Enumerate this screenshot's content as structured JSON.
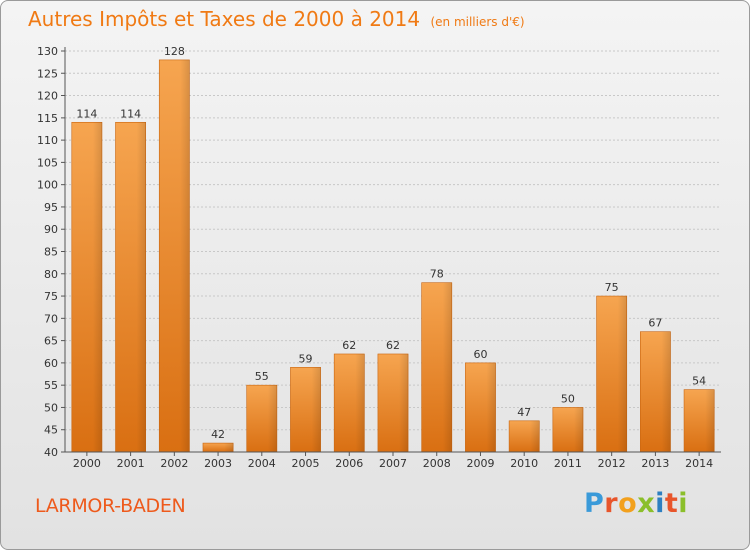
{
  "chart_data": {
    "type": "bar",
    "title": "Autres Impôts et Taxes de 2000 à 2014",
    "subtitle": "(en milliers d'€)",
    "categories": [
      "2000",
      "2001",
      "2002",
      "2003",
      "2004",
      "2005",
      "2006",
      "2007",
      "2008",
      "2009",
      "2010",
      "2011",
      "2012",
      "2013",
      "2014"
    ],
    "values": [
      114,
      114,
      128,
      42,
      55,
      59,
      62,
      62,
      78,
      60,
      47,
      50,
      75,
      67,
      54
    ],
    "ylim": [
      40,
      130
    ],
    "yticks": [
      40,
      45,
      50,
      55,
      60,
      65,
      70,
      75,
      80,
      85,
      90,
      95,
      100,
      105,
      110,
      115,
      120,
      125,
      130
    ],
    "grid": true,
    "bar_color": "#f0902f"
  },
  "footer": {
    "place": "LARMOR-BADEN",
    "logo": [
      {
        "ch": "P",
        "color": "#3a9ad9"
      },
      {
        "ch": "r",
        "color": "#e8552b"
      },
      {
        "ch": "o",
        "color": "#f2a01d"
      },
      {
        "ch": "x",
        "color": "#8bbf2a"
      },
      {
        "ch": "i",
        "color": "#2d7fc1"
      },
      {
        "ch": "t",
        "color": "#e8552b"
      },
      {
        "ch": "i",
        "color": "#8bbf2a"
      }
    ]
  }
}
